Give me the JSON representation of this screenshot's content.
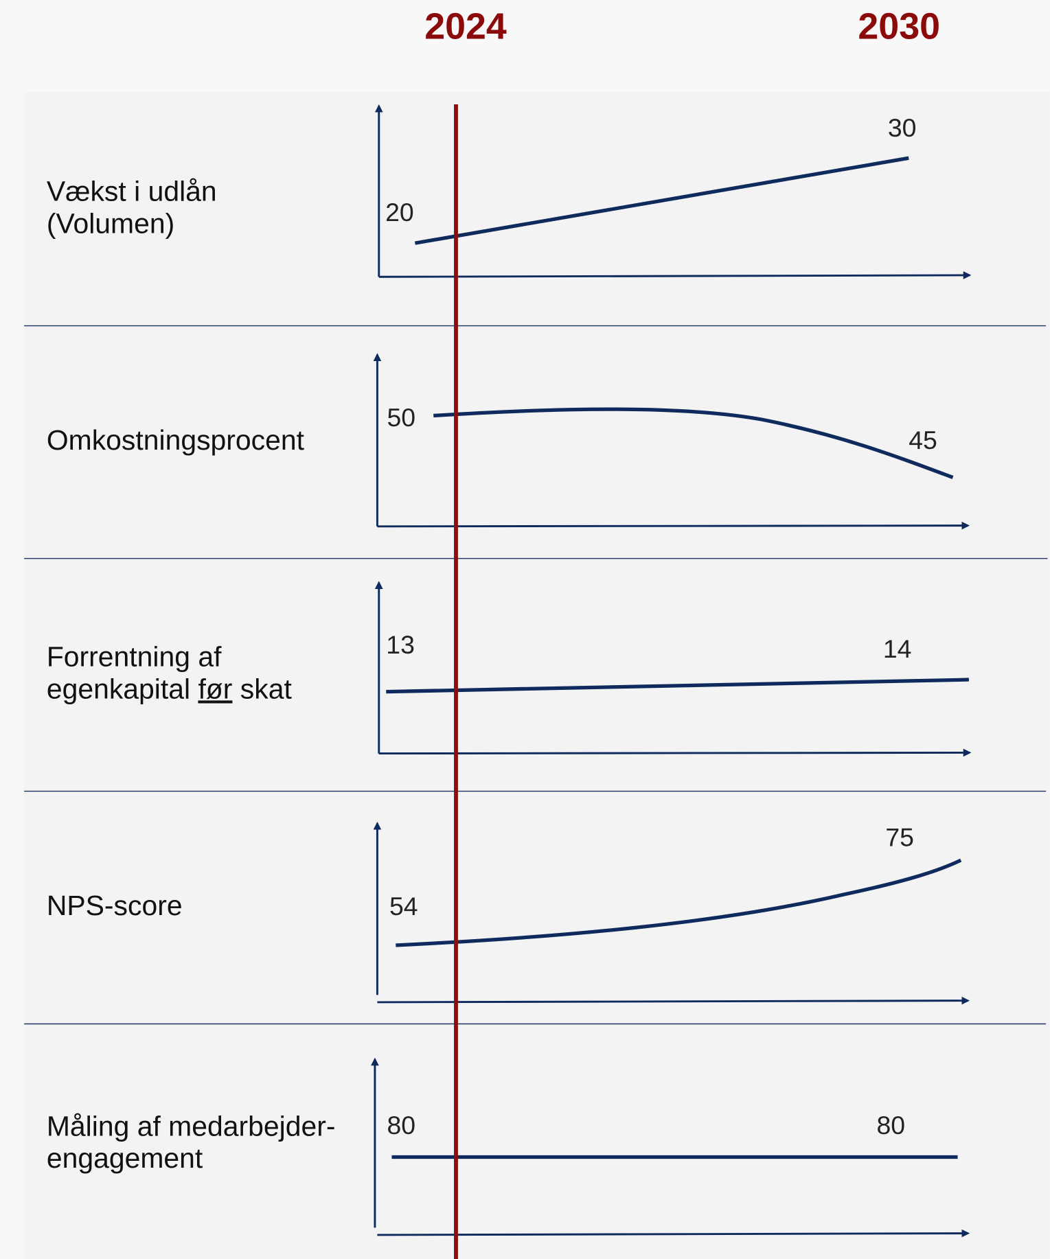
{
  "header": {
    "years": [
      "2024",
      "2030"
    ]
  },
  "rows": [
    {
      "label": [
        "Vækst i udlån",
        "(Volumen)"
      ],
      "start": 20,
      "end": 30
    },
    {
      "label": [
        "Omkostningsprocent"
      ],
      "start": 50,
      "end": 45
    },
    {
      "label": [
        "Forrentning af",
        "egenkapital",
        "før",
        "skat"
      ],
      "start": 13,
      "end": 14
    },
    {
      "label": [
        "NPS-score"
      ],
      "start": 54,
      "end": 75
    },
    {
      "label": [
        "Måling af medarbejder-",
        "engagement"
      ],
      "start": 80,
      "end": 80
    }
  ]
}
